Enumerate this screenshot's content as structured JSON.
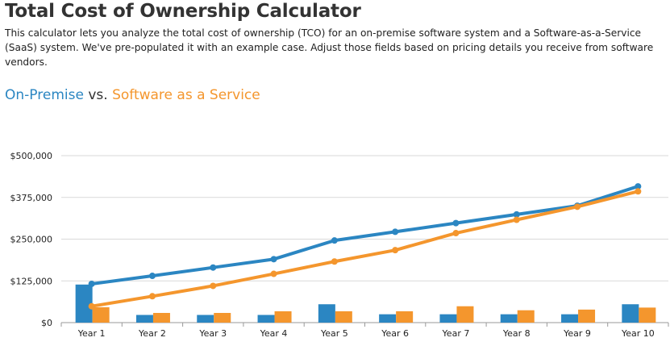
{
  "page": {
    "title": "Total Cost of Ownership Calculator",
    "intro": "This calculator lets you analyze the total cost of ownership (TCO) for an on-premise software system and a Software-as-a-Service (SaaS) system. We've pre-populated it with an example case. Adjust those fields based on pricing details you receive from software vendors.",
    "heading_a": "On-Premise",
    "heading_vs": "vs.",
    "heading_b": "Software as a Service"
  },
  "colors": {
    "on_premise": "#2b86c2",
    "saas": "#f4962d",
    "grid": "#d9d9d9",
    "axis": "#999999"
  },
  "chart_data": {
    "type": "bar+line",
    "categories": [
      "Year 1",
      "Year 2",
      "Year 3",
      "Year 4",
      "Year 5",
      "Year 6",
      "Year 7",
      "Year 8",
      "Year 9",
      "Year 10"
    ],
    "ylim": [
      0,
      500000
    ],
    "yticks": [
      0,
      125000,
      250000,
      375000,
      500000
    ],
    "ytick_labels": [
      "$0",
      "$125,000",
      "$250,000",
      "$375,000",
      "$500,000"
    ],
    "grid": true,
    "series": [
      {
        "key": "on_premise",
        "kind": "bar",
        "values": [
          114000,
          23000,
          23000,
          23000,
          55000,
          25000,
          25000,
          25000,
          25000,
          55000
        ]
      },
      {
        "key": "saas",
        "kind": "bar",
        "values": [
          46000,
          29000,
          29000,
          34000,
          34000,
          34000,
          49000,
          37000,
          39000,
          45000
        ]
      },
      {
        "key": "on_premise",
        "kind": "line",
        "values": [
          116000,
          140000,
          165000,
          190000,
          246000,
          272000,
          298000,
          324000,
          350000,
          408000
        ]
      },
      {
        "key": "saas",
        "kind": "line",
        "values": [
          49000,
          79000,
          110000,
          146000,
          183000,
          217000,
          268000,
          308000,
          347000,
          393000
        ]
      }
    ]
  }
}
